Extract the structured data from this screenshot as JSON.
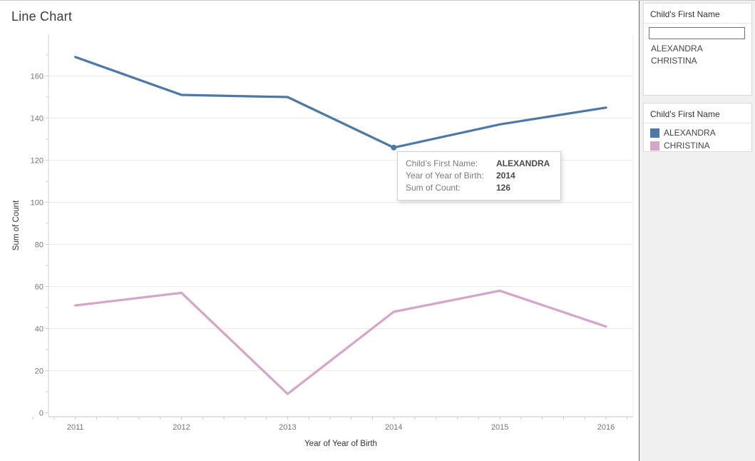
{
  "title": "Line Chart",
  "chart_data": {
    "type": "line",
    "title": "Line Chart",
    "xlabel": "Year of Year of Birth",
    "ylabel": "Sum of Count",
    "x": [
      2011,
      2012,
      2013,
      2014,
      2015,
      2016
    ],
    "yticks": [
      0,
      20,
      40,
      60,
      80,
      100,
      120,
      140,
      160
    ],
    "ylim": [
      0,
      180
    ],
    "grid": "horizontal-only",
    "legend_position": "right",
    "series": [
      {
        "name": "ALEXANDRA",
        "color": "#4e79a7",
        "values": [
          169,
          151,
          150,
          126,
          137,
          145
        ]
      },
      {
        "name": "CHRISTINA",
        "color": "#d4a6c8",
        "values": [
          51,
          57,
          9,
          48,
          58,
          41
        ]
      }
    ],
    "highlight_point": {
      "series": "ALEXANDRA",
      "x": 2014,
      "value": 126
    }
  },
  "tooltip": {
    "rows": [
      {
        "label": "Child’s First Name:",
        "value": "ALEXANDRA"
      },
      {
        "label": "Year of Year of Birth:",
        "value": "2014"
      },
      {
        "label": "Sum of Count:",
        "value": "126"
      }
    ]
  },
  "sidebar": {
    "filter": {
      "title": "Child's First Name",
      "search_value": "",
      "items": [
        "ALEXANDRA",
        "CHRISTINA"
      ]
    },
    "legend": {
      "title": "Child's First Name",
      "entries": [
        {
          "label": "ALEXANDRA",
          "color": "#4e79a7"
        },
        {
          "label": "CHRISTINA",
          "color": "#d4a6c8"
        }
      ]
    }
  },
  "colors": {
    "gridline": "#ebebeb",
    "axis_line": "#c9c9c9",
    "tick_label": "#777777",
    "axis_title": "#333333"
  }
}
